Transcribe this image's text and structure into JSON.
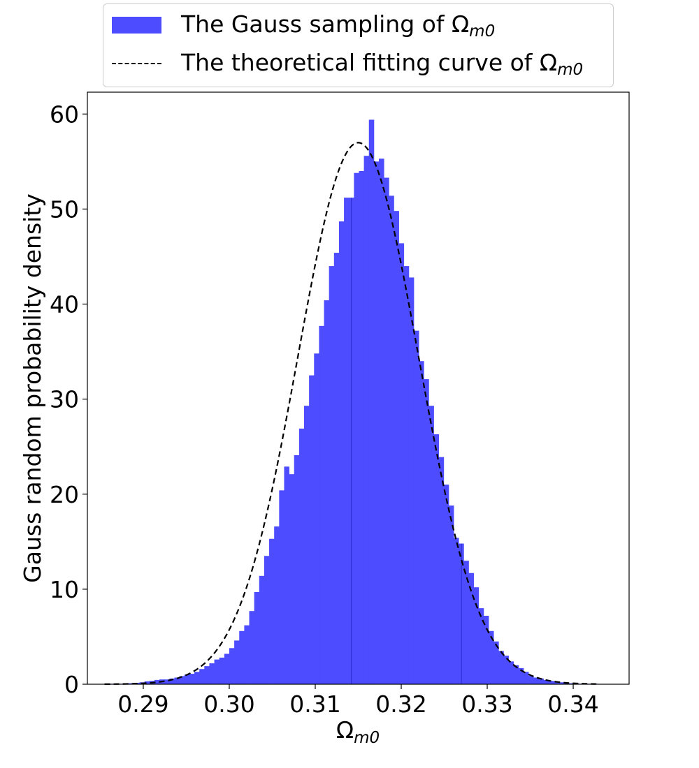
{
  "chart_data": {
    "type": "bar",
    "subtype": "histogram-with-fit",
    "xlabel_base": "Ω",
    "xlabel_sub": "m0",
    "ylabel": "Gauss random probability density",
    "xlim": [
      0.2835,
      0.3465
    ],
    "ylim": [
      0,
      62.3
    ],
    "x_ticks": [
      "0.29",
      "0.30",
      "0.31",
      "0.32",
      "0.33",
      "0.34"
    ],
    "y_ticks": [
      "0",
      "10",
      "20",
      "30",
      "40",
      "50",
      "60"
    ],
    "grid": false,
    "legend_placement": "top-center above plot",
    "hist_color": "#4d4dff",
    "bin_edges_start": 0.2855,
    "bin_width": 0.00058,
    "hist_values": [
      0.05,
      0.05,
      0.05,
      0.05,
      0.1,
      0.1,
      0.15,
      0.2,
      0.3,
      0.35,
      0.45,
      0.5,
      0.5,
      0.6,
      0.7,
      0.85,
      1.0,
      1.1,
      1.3,
      1.6,
      1.9,
      2.2,
      2.6,
      2.8,
      3.2,
      3.8,
      4.6,
      5.6,
      6.2,
      7.7,
      9.7,
      11.4,
      13.5,
      15.3,
      16.6,
      20.4,
      22.9,
      22.1,
      24.1,
      26.9,
      29.3,
      32.5,
      34.8,
      37.7,
      40.4,
      44.0,
      45.4,
      48.7,
      51.2,
      51.2,
      53.8,
      54.0,
      55.6,
      59.4,
      55.0,
      55.3,
      53.3,
      51.4,
      49.8,
      46.4,
      44.0,
      42.8,
      37.2,
      34.0,
      32.1,
      29.3,
      26.3,
      23.9,
      21.0,
      18.8,
      15.4,
      14.8,
      13.0,
      11.7,
      10.2,
      8.0,
      7.2,
      5.6,
      4.5,
      3.5,
      3.0,
      2.4,
      2.0,
      1.7,
      1.3,
      0.9,
      0.7,
      0.6,
      0.45,
      0.35,
      0.3,
      0.2,
      0.15,
      0.1,
      0.1,
      0.05,
      0.05,
      0.05,
      0.05
    ],
    "vertical_lines_x": [
      0.3142,
      0.327
    ],
    "fit_curve": {
      "style": "dashed",
      "color": "#000000",
      "mean": 0.315,
      "sigma": 0.007,
      "x_range": [
        0.2855,
        0.343
      ]
    },
    "legend": [
      {
        "label": "The Gauss sampling of ",
        "symbol": "Ω",
        "sub": "m0",
        "kind": "patch"
      },
      {
        "label": "The theoretical fitting curve of ",
        "symbol": "Ω",
        "sub": "m0",
        "kind": "dashed-line"
      }
    ]
  }
}
